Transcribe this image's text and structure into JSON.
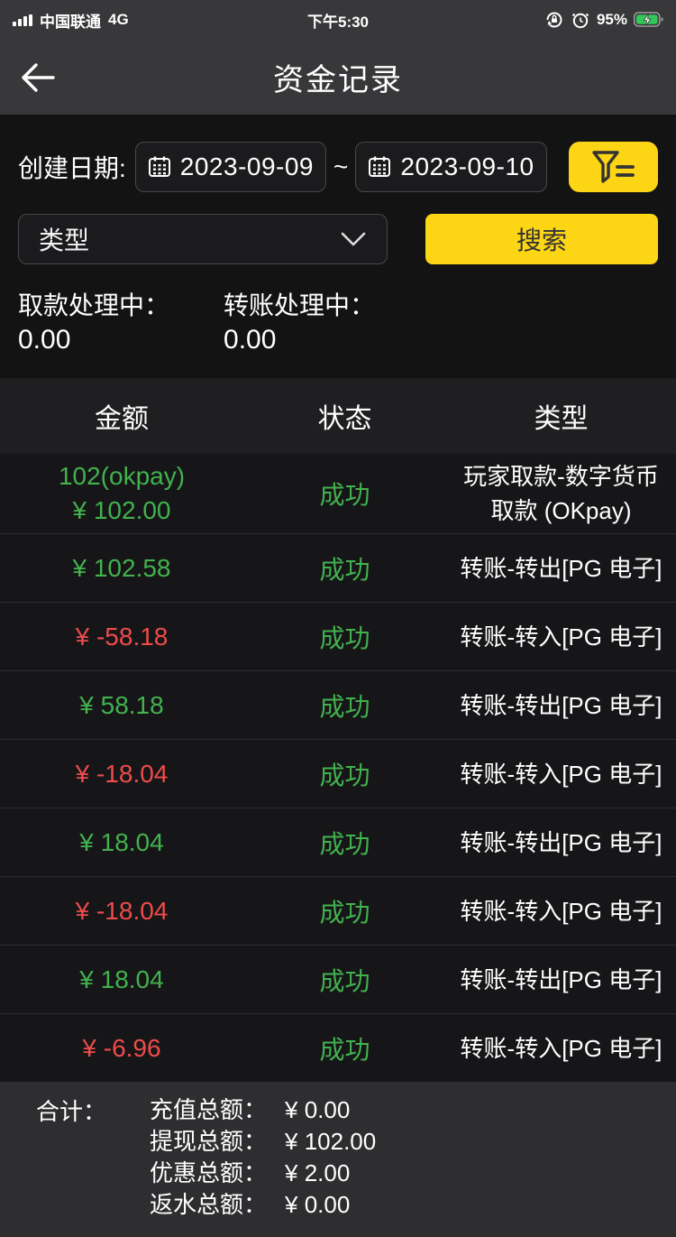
{
  "status_bar": {
    "carrier": "中国联通",
    "network": "4G",
    "time": "下午5:30",
    "battery_percent": "95%"
  },
  "nav": {
    "title": "资金记录"
  },
  "filters": {
    "date_label": "创建日期:",
    "date_from": "2023-09-09",
    "date_separator": "~",
    "date_to": "2023-09-10",
    "type_value": "类型",
    "search_label": "搜索"
  },
  "pending": {
    "withdraw_label": "取款处理中：",
    "withdraw_value": "0.00",
    "transfer_label": "转账处理中：",
    "transfer_value": "0.00"
  },
  "table": {
    "headers": {
      "amount": "金额",
      "status": "状态",
      "type": "类型"
    },
    "rows": [
      {
        "amount_lines": [
          "102(okpay)",
          "¥ 102.00"
        ],
        "amount_color": "green",
        "status": "成功",
        "type": "玩家取款-数字货币取款 (OKpay)"
      },
      {
        "amount_lines": [
          "¥ 102.58"
        ],
        "amount_color": "green",
        "status": "成功",
        "type": "转账-转出[PG 电子]"
      },
      {
        "amount_lines": [
          "¥ -58.18"
        ],
        "amount_color": "red",
        "status": "成功",
        "type": "转账-转入[PG 电子]"
      },
      {
        "amount_lines": [
          "¥ 58.18"
        ],
        "amount_color": "green",
        "status": "成功",
        "type": "转账-转出[PG 电子]"
      },
      {
        "amount_lines": [
          "¥ -18.04"
        ],
        "amount_color": "red",
        "status": "成功",
        "type": "转账-转入[PG 电子]"
      },
      {
        "amount_lines": [
          "¥ 18.04"
        ],
        "amount_color": "green",
        "status": "成功",
        "type": "转账-转出[PG 电子]"
      },
      {
        "amount_lines": [
          "¥ -18.04"
        ],
        "amount_color": "red",
        "status": "成功",
        "type": "转账-转入[PG 电子]"
      },
      {
        "amount_lines": [
          "¥ 18.04"
        ],
        "amount_color": "green",
        "status": "成功",
        "type": "转账-转出[PG 电子]"
      },
      {
        "amount_lines": [
          "¥ -6.96"
        ],
        "amount_color": "red",
        "status": "成功",
        "type": "转账-转入[PG 电子]"
      }
    ]
  },
  "summary": {
    "label": "合计：",
    "items": [
      {
        "label": "充值总额：",
        "value": "¥ 0.00"
      },
      {
        "label": "提现总额：",
        "value": "¥ 102.00"
      },
      {
        "label": "优惠总额：",
        "value": "¥ 2.00"
      },
      {
        "label": "返水总额：",
        "value": "¥ 0.00"
      }
    ]
  },
  "colors": {
    "accent_yellow": "#fcd514",
    "positive_green": "#42b14e",
    "negative_red": "#ee4b4b",
    "topbar_gray": "#38383a",
    "page_black": "#131314"
  }
}
